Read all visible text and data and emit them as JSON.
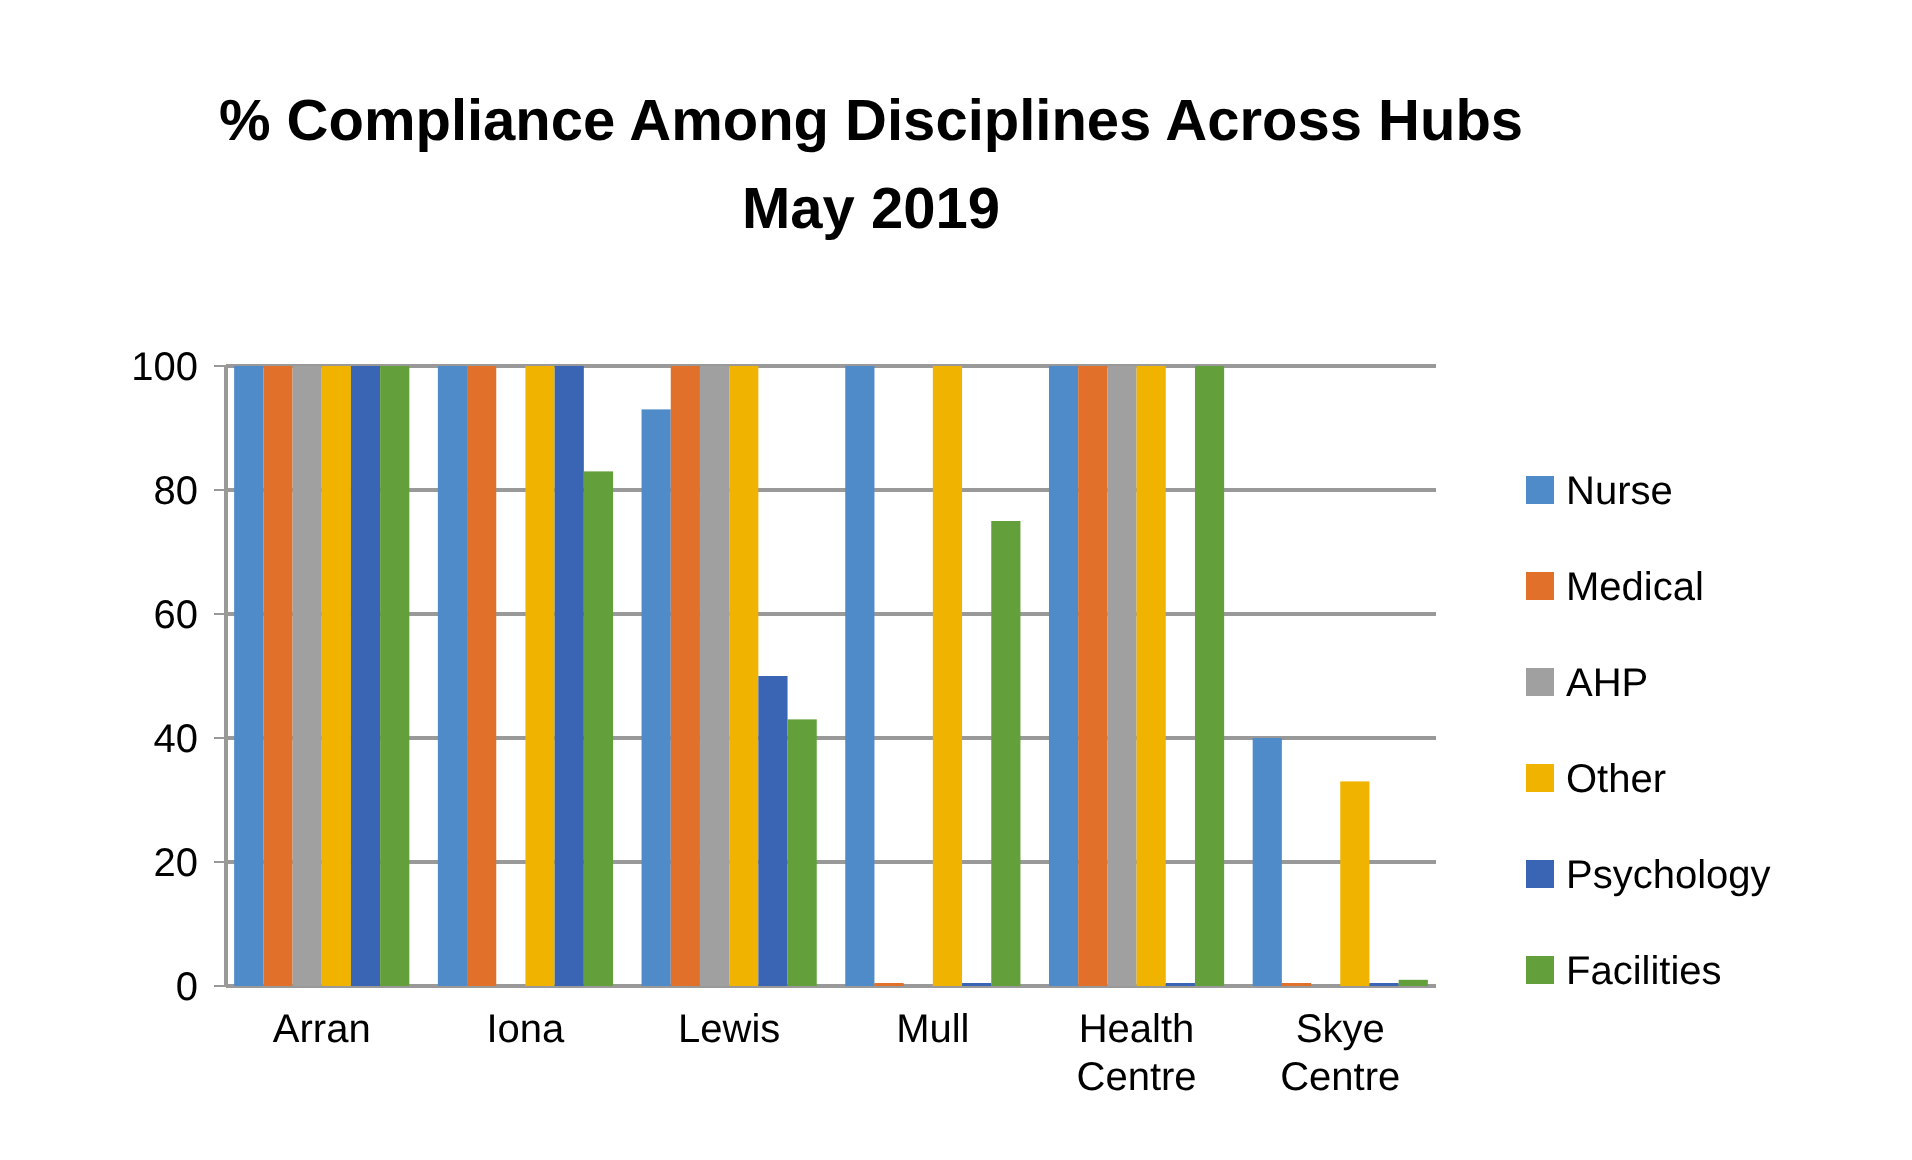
{
  "chart_data": {
    "type": "bar",
    "title": "% Compliance Among Disciplines Across Hubs",
    "subtitle": "May 2019",
    "categories": [
      "Arran",
      "Iona",
      "Lewis",
      "Mull",
      "Health Centre",
      "Skye Centre"
    ],
    "series": [
      {
        "name": "Nurse",
        "color": "#4f8bc9",
        "values": [
          100,
          100,
          93,
          100,
          100,
          40
        ]
      },
      {
        "name": "Medical",
        "color": "#e0702a",
        "values": [
          100,
          100,
          100,
          0,
          100,
          0
        ]
      },
      {
        "name": "AHP",
        "color": "#a0a0a0",
        "values": [
          100,
          null,
          100,
          null,
          100,
          null
        ]
      },
      {
        "name": "Other",
        "color": "#f0b400",
        "values": [
          100,
          100,
          100,
          100,
          100,
          33
        ]
      },
      {
        "name": "Psychology",
        "color": "#3a64b4",
        "values": [
          100,
          100,
          50,
          0,
          0,
          0
        ]
      },
      {
        "name": "Facilities",
        "color": "#63a03c",
        "values": [
          100,
          83,
          43,
          75,
          100,
          1
        ]
      }
    ],
    "ylim": [
      0,
      100
    ],
    "yticks": [
      0,
      20,
      40,
      60,
      80,
      100
    ],
    "grid": "y",
    "legend": "right"
  }
}
